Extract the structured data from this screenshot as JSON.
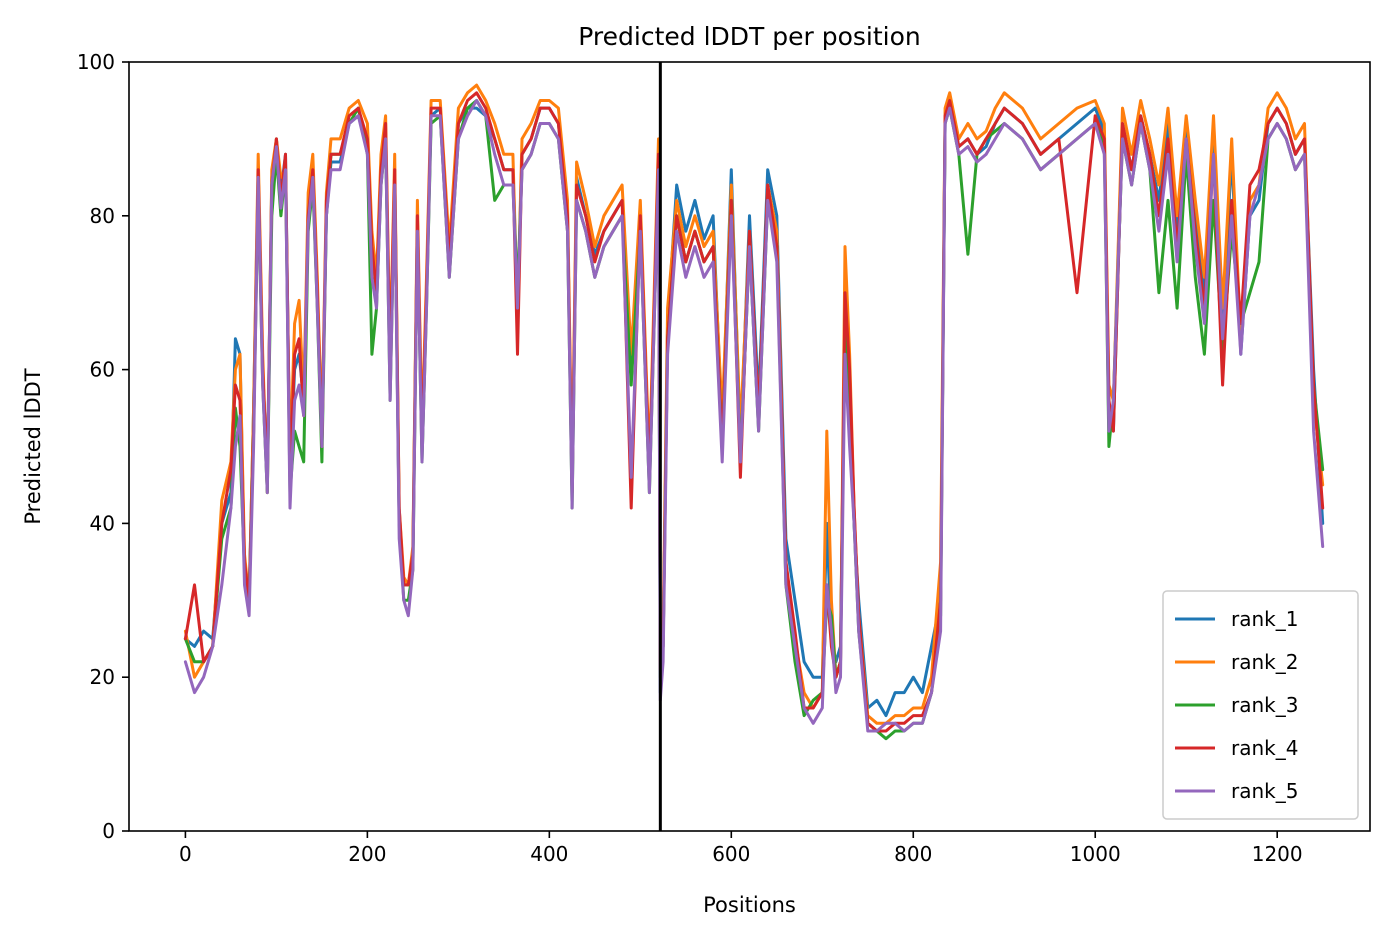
{
  "chart_data": {
    "type": "line",
    "title": "Predicted lDDT per position",
    "xlabel": "Positions",
    "ylabel": "Predicted lDDT",
    "xlim": [
      -62,
      1302
    ],
    "ylim": [
      0,
      100
    ],
    "xticks": [
      0,
      200,
      400,
      600,
      800,
      1000,
      1200
    ],
    "yticks": [
      0,
      20,
      40,
      60,
      80,
      100
    ],
    "grid": false,
    "legend_position": "lower-right",
    "chain_boundary_x": 522,
    "x": [
      0,
      10,
      20,
      30,
      40,
      50,
      55,
      60,
      65,
      70,
      75,
      80,
      85,
      90,
      95,
      100,
      105,
      110,
      115,
      120,
      125,
      130,
      135,
      140,
      145,
      150,
      155,
      160,
      170,
      180,
      190,
      200,
      205,
      210,
      215,
      220,
      225,
      230,
      235,
      240,
      245,
      250,
      255,
      260,
      265,
      270,
      280,
      290,
      300,
      310,
      320,
      330,
      340,
      350,
      360,
      365,
      370,
      380,
      390,
      400,
      410,
      420,
      425,
      430,
      440,
      450,
      460,
      470,
      480,
      490,
      500,
      510,
      520,
      522,
      525,
      530,
      540,
      550,
      560,
      570,
      580,
      590,
      600,
      610,
      620,
      630,
      640,
      650,
      660,
      670,
      680,
      690,
      700,
      705,
      710,
      715,
      720,
      725,
      730,
      735,
      740,
      750,
      760,
      770,
      780,
      790,
      800,
      810,
      820,
      830,
      835,
      840,
      850,
      860,
      870,
      880,
      890,
      900,
      920,
      940,
      960,
      980,
      1000,
      1010,
      1015,
      1020,
      1030,
      1040,
      1050,
      1060,
      1070,
      1080,
      1090,
      1100,
      1110,
      1120,
      1130,
      1140,
      1150,
      1160,
      1170,
      1180,
      1190,
      1200,
      1210,
      1220,
      1230,
      1240,
      1250
    ],
    "series": [
      {
        "name": "rank_1",
        "color": "#1f77b4",
        "values": [
          25,
          24,
          26,
          25,
          40,
          44,
          64,
          62,
          34,
          30,
          55,
          86,
          60,
          46,
          85,
          90,
          83,
          88,
          46,
          60,
          62,
          56,
          80,
          86,
          70,
          52,
          80,
          87,
          87,
          92,
          93,
          90,
          76,
          70,
          86,
          90,
          60,
          86,
          40,
          32,
          32,
          36,
          80,
          50,
          70,
          93,
          94,
          74,
          92,
          94,
          94,
          93,
          90,
          86,
          86,
          68,
          88,
          90,
          94,
          94,
          92,
          80,
          44,
          85,
          80,
          75,
          78,
          80,
          82,
          60,
          80,
          45,
          88,
          18,
          24,
          66,
          84,
          78,
          82,
          77,
          80,
          52,
          86,
          50,
          80,
          56,
          86,
          80,
          38,
          30,
          22,
          20,
          20,
          40,
          25,
          22,
          24,
          66,
          55,
          40,
          30,
          16,
          17,
          15,
          18,
          18,
          20,
          18,
          24,
          30,
          92,
          95,
          89,
          90,
          88,
          89,
          92,
          94,
          92,
          88,
          90,
          92,
          94,
          91,
          55,
          52,
          92,
          86,
          93,
          88,
          82,
          92,
          78,
          92,
          80,
          70,
          92,
          66,
          88,
          62,
          80,
          82,
          92,
          94,
          92,
          88,
          90,
          60,
          40
        ]
      },
      {
        "name": "rank_2",
        "color": "#ff7f0e",
        "values": [
          26,
          20,
          22,
          24,
          43,
          48,
          60,
          62,
          36,
          30,
          55,
          88,
          62,
          44,
          86,
          90,
          85,
          86,
          48,
          66,
          69,
          56,
          83,
          88,
          72,
          52,
          83,
          90,
          90,
          94,
          95,
          92,
          78,
          72,
          88,
          93,
          62,
          88,
          42,
          33,
          32,
          37,
          82,
          52,
          72,
          95,
          95,
          76,
          94,
          96,
          97,
          95,
          92,
          88,
          88,
          67,
          90,
          92,
          95,
          95,
          94,
          82,
          46,
          87,
          82,
          76,
          80,
          82,
          84,
          62,
          82,
          48,
          90,
          22,
          26,
          68,
          82,
          76,
          80,
          76,
          78,
          54,
          84,
          52,
          78,
          54,
          84,
          78,
          35,
          25,
          18,
          16,
          18,
          52,
          30,
          20,
          22,
          76,
          62,
          42,
          28,
          15,
          14,
          14,
          15,
          15,
          16,
          16,
          20,
          35,
          94,
          96,
          90,
          92,
          90,
          91,
          94,
          96,
          94,
          90,
          92,
          94,
          95,
          92,
          58,
          56,
          94,
          88,
          95,
          90,
          84,
          94,
          80,
          93,
          82,
          72,
          93,
          68,
          90,
          64,
          82,
          84,
          94,
          96,
          94,
          90,
          92,
          56,
          45
        ]
      },
      {
        "name": "rank_3",
        "color": "#2ca02c",
        "values": [
          25,
          22,
          22,
          24,
          38,
          42,
          55,
          50,
          34,
          30,
          52,
          84,
          58,
          44,
          80,
          88,
          80,
          86,
          44,
          52,
          50,
          48,
          78,
          84,
          68,
          48,
          80,
          88,
          88,
          92,
          94,
          88,
          62,
          68,
          84,
          90,
          56,
          84,
          40,
          30,
          30,
          34,
          78,
          48,
          68,
          92,
          93,
          72,
          90,
          94,
          95,
          93,
          82,
          84,
          84,
          70,
          86,
          88,
          92,
          92,
          90,
          78,
          42,
          82,
          78,
          72,
          76,
          78,
          80,
          58,
          78,
          44,
          86,
          20,
          24,
          64,
          80,
          74,
          78,
          74,
          76,
          50,
          82,
          48,
          76,
          52,
          82,
          76,
          32,
          22,
          15,
          17,
          18,
          30,
          28,
          20,
          22,
          68,
          56,
          40,
          26,
          14,
          13,
          12,
          13,
          13,
          14,
          14,
          18,
          28,
          92,
          94,
          88,
          75,
          88,
          90,
          91,
          92,
          90,
          86,
          88,
          90,
          92,
          89,
          50,
          56,
          90,
          84,
          92,
          86,
          70,
          82,
          68,
          88,
          72,
          62,
          82,
          62,
          78,
          66,
          70,
          74,
          90,
          92,
          90,
          86,
          88,
          58,
          47
        ]
      },
      {
        "name": "rank_4",
        "color": "#d62728",
        "values": [
          25,
          32,
          22,
          24,
          40,
          47,
          58,
          56,
          35,
          30,
          52,
          86,
          60,
          46,
          84,
          90,
          82,
          88,
          46,
          62,
          64,
          54,
          80,
          86,
          70,
          50,
          82,
          88,
          88,
          93,
          94,
          90,
          76,
          70,
          86,
          92,
          60,
          86,
          42,
          32,
          32,
          36,
          80,
          50,
          70,
          94,
          94,
          74,
          92,
          95,
          96,
          94,
          90,
          86,
          86,
          62,
          88,
          90,
          94,
          94,
          92,
          80,
          44,
          84,
          80,
          74,
          78,
          80,
          82,
          42,
          80,
          46,
          88,
          21,
          24,
          64,
          80,
          74,
          78,
          74,
          76,
          50,
          82,
          46,
          78,
          54,
          84,
          76,
          35,
          26,
          16,
          16,
          18,
          32,
          24,
          20,
          22,
          70,
          60,
          42,
          28,
          14,
          13,
          13,
          14,
          14,
          15,
          15,
          18,
          30,
          93,
          95,
          89,
          90,
          88,
          90,
          92,
          94,
          92,
          88,
          90,
          70,
          93,
          90,
          56,
          52,
          92,
          86,
          93,
          88,
          80,
          90,
          76,
          90,
          78,
          68,
          88,
          58,
          82,
          66,
          84,
          86,
          92,
          94,
          92,
          88,
          90,
          58,
          42
        ]
      },
      {
        "name": "rank_5",
        "color": "#9467bd",
        "values": [
          22,
          18,
          20,
          24,
          32,
          42,
          50,
          54,
          32,
          28,
          50,
          85,
          58,
          44,
          84,
          89,
          81,
          86,
          42,
          56,
          58,
          54,
          79,
          85,
          68,
          50,
          80,
          86,
          86,
          92,
          93,
          88,
          72,
          68,
          84,
          90,
          56,
          84,
          38,
          30,
          28,
          34,
          78,
          48,
          68,
          93,
          93,
          72,
          90,
          93,
          95,
          93,
          88,
          84,
          84,
          68,
          86,
          88,
          92,
          92,
          90,
          78,
          42,
          82,
          78,
          72,
          76,
          78,
          80,
          46,
          78,
          44,
          86,
          17,
          22,
          62,
          78,
          72,
          76,
          72,
          74,
          48,
          80,
          48,
          76,
          52,
          82,
          74,
          32,
          24,
          16,
          14,
          16,
          32,
          26,
          18,
          20,
          62,
          50,
          40,
          26,
          13,
          13,
          14,
          14,
          13,
          14,
          14,
          18,
          26,
          92,
          94,
          88,
          89,
          87,
          88,
          90,
          92,
          90,
          86,
          88,
          90,
          92,
          88,
          52,
          56,
          90,
          84,
          92,
          86,
          78,
          88,
          74,
          90,
          76,
          66,
          88,
          64,
          80,
          62,
          80,
          84,
          90,
          92,
          90,
          86,
          88,
          52,
          37
        ]
      }
    ]
  }
}
